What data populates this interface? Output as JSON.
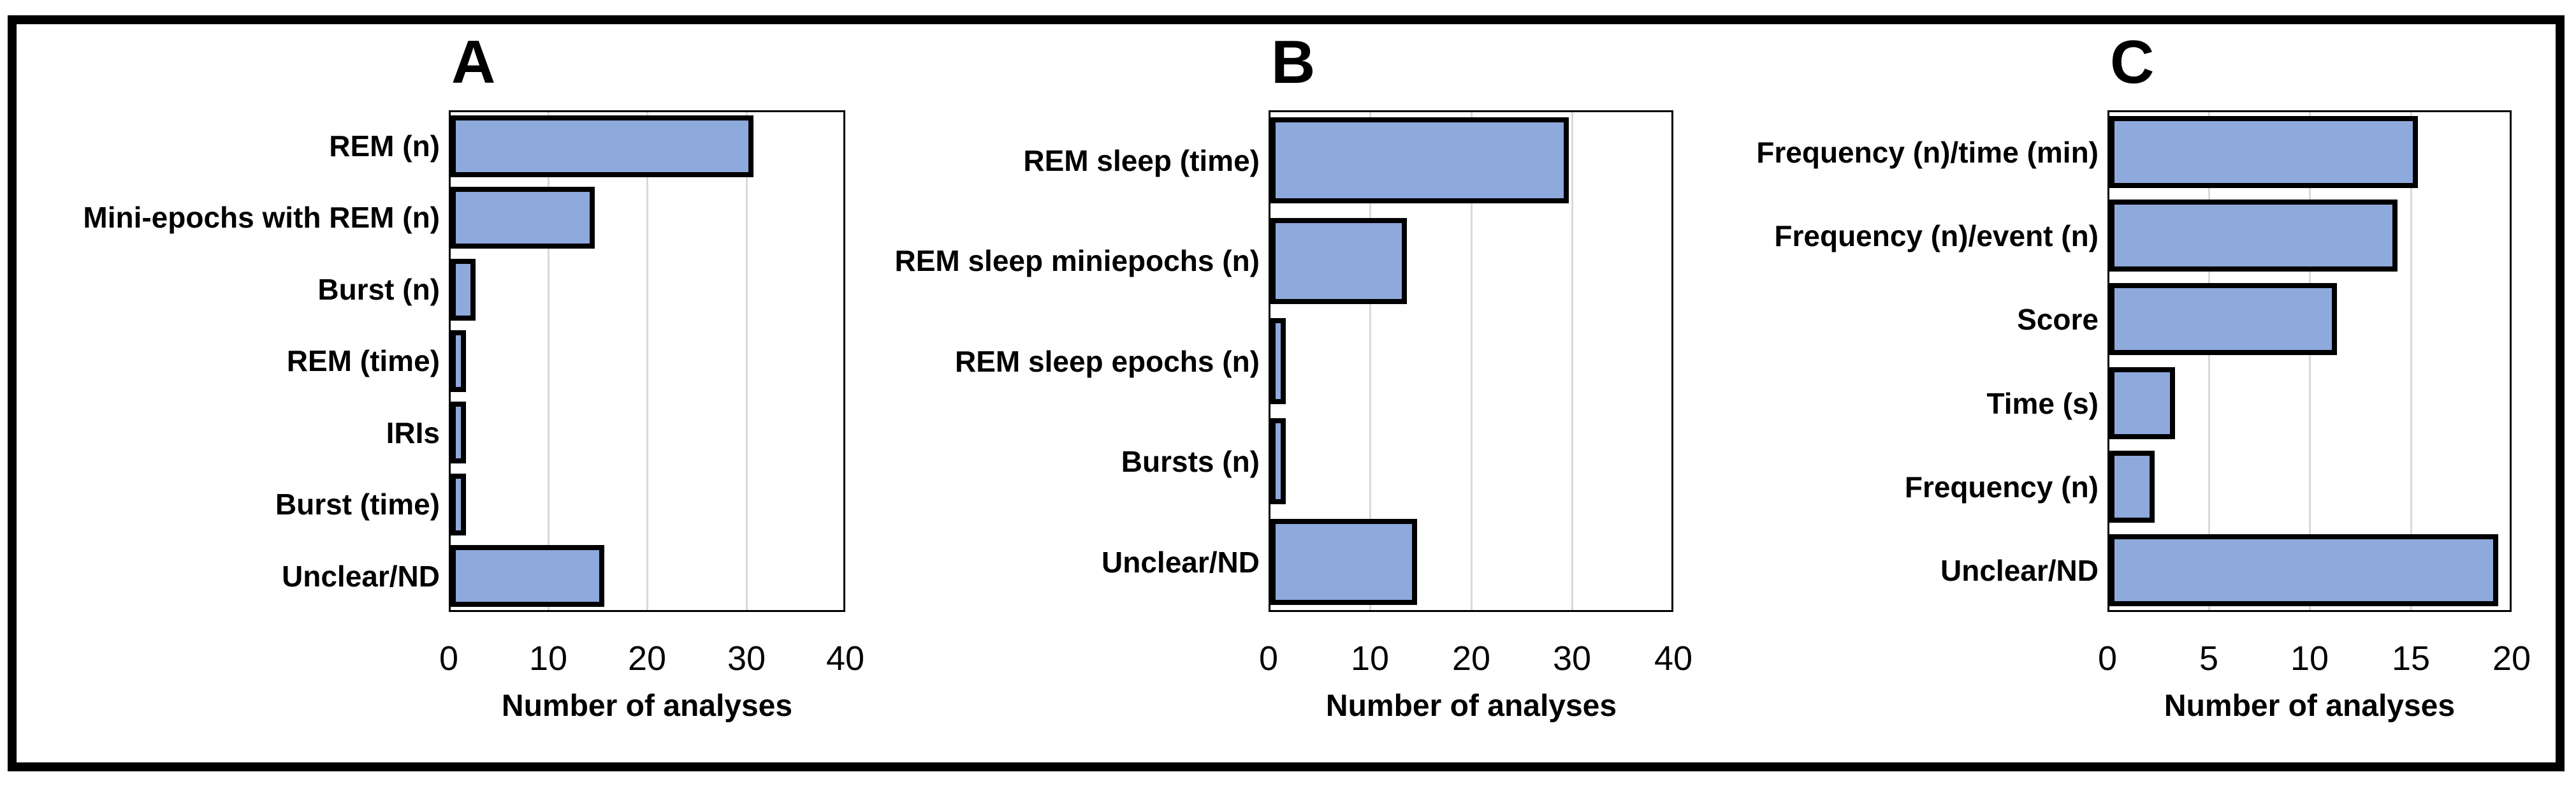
{
  "figure": {
    "background_color": "#ffffff",
    "frame_color": "#000000",
    "bar_fill_color": "#8ea9db",
    "bar_outline_color": "#000000",
    "gridline_color": "#d9d9d9"
  },
  "chart_data": [
    {
      "type": "bar",
      "orientation": "horizontal",
      "title": "A",
      "categories": [
        "REM (n)",
        "Mini-epochs with REM (n)",
        "Burst (n)",
        "REM (time)",
        "IRIs",
        "Burst (time)",
        "Unclear/ND"
      ],
      "values": [
        30,
        14,
        2,
        1,
        1,
        1,
        15
      ],
      "xlabel": "Number of analyses",
      "ylabel": "",
      "xlim": [
        0,
        40
      ],
      "xticks": [
        0,
        10,
        20,
        30,
        40
      ],
      "grid": "vertical-light",
      "legend": "none"
    },
    {
      "type": "bar",
      "orientation": "horizontal",
      "title": "B",
      "categories": [
        "REM sleep (time)",
        "REM sleep miniepochs (n)",
        "REM sleep epochs (n)",
        "Bursts (n)",
        "Unclear/ND"
      ],
      "values": [
        29,
        13,
        1,
        1,
        14
      ],
      "xlabel": "Number of analyses",
      "ylabel": "",
      "xlim": [
        0,
        40
      ],
      "xticks": [
        0,
        10,
        20,
        30,
        40
      ],
      "grid": "vertical-light",
      "legend": "none"
    },
    {
      "type": "bar",
      "orientation": "horizontal",
      "title": "C",
      "categories": [
        "Frequency (n)/time (min)",
        "Frequency (n)/event (n)",
        "Score",
        "Time (s)",
        "Frequency (n)",
        "Unclear/ND"
      ],
      "values": [
        15,
        14,
        11,
        3,
        2,
        19
      ],
      "xlabel": "Number of analyses",
      "ylabel": "",
      "xlim": [
        0,
        20
      ],
      "xticks": [
        0,
        5,
        10,
        15,
        20
      ],
      "grid": "vertical-light",
      "legend": "none"
    }
  ]
}
